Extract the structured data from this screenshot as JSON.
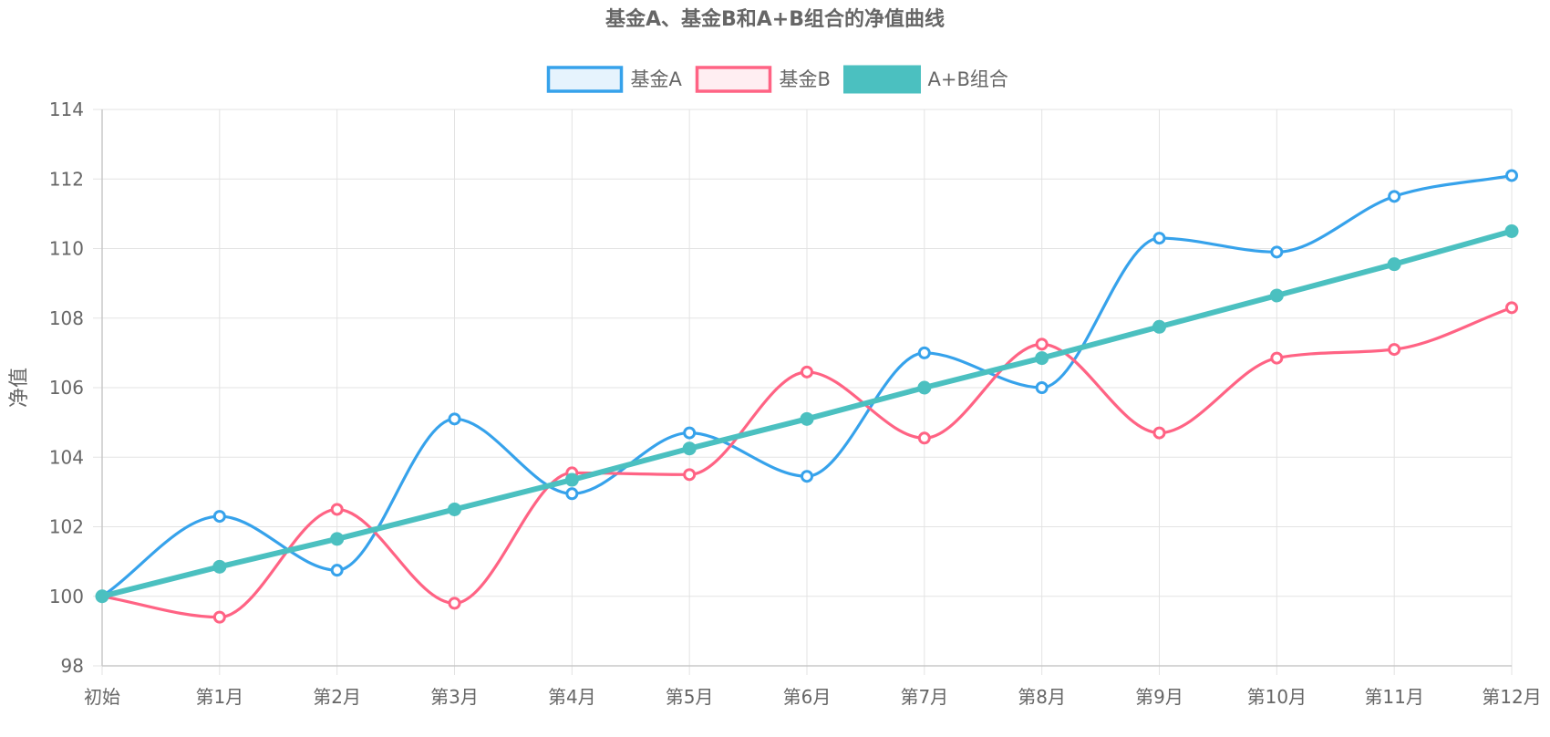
{
  "chart_data": {
    "type": "line",
    "title": "基金A、基金B和A+B组合的净值曲线",
    "ylabel": "净值",
    "xlabel": "",
    "categories": [
      "初始",
      "第1月",
      "第2月",
      "第3月",
      "第4月",
      "第5月",
      "第6月",
      "第7月",
      "第8月",
      "第9月",
      "第10月",
      "第11月",
      "第12月"
    ],
    "ylim": [
      98,
      114
    ],
    "yticks": [
      98,
      100,
      102,
      104,
      106,
      108,
      110,
      112,
      114
    ],
    "grid": true,
    "legend_position": "top",
    "series": [
      {
        "name": "基金A",
        "color": "#36a2eb",
        "fill": "#e6f3fd",
        "values": [
          100.0,
          102.3,
          100.75,
          105.1,
          102.95,
          104.7,
          103.45,
          107.0,
          106.0,
          110.3,
          109.9,
          111.5,
          112.1
        ]
      },
      {
        "name": "基金B",
        "color": "#ff6384",
        "fill": "#ffeef2",
        "values": [
          100.0,
          99.4,
          102.5,
          99.8,
          103.55,
          103.5,
          106.45,
          104.55,
          107.25,
          104.7,
          106.85,
          107.1,
          108.3
        ]
      },
      {
        "name": "A+B组合",
        "color": "#4bc0c0",
        "fill": "#4bc0c0",
        "values": [
          100.0,
          100.85,
          101.65,
          102.5,
          103.35,
          104.25,
          105.1,
          106.0,
          106.85,
          107.75,
          108.65,
          109.55,
          110.5
        ]
      }
    ]
  }
}
